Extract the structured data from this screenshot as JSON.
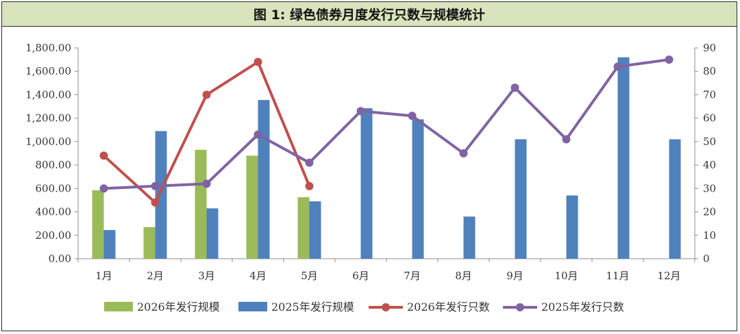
{
  "title": "图 1:  绿色债券月度发行只数与规模统计",
  "chart_data": {
    "type": "bar+line",
    "categories": [
      "1月",
      "2月",
      "3月",
      "4月",
      "5月",
      "6月",
      "7月",
      "8月",
      "9月",
      "10月",
      "11月",
      "12月"
    ],
    "left_axis": {
      "ylim": [
        0,
        1800
      ],
      "ticks": [
        "0.00",
        "200.00",
        "400.00",
        "600.00",
        "800.00",
        "1,000.00",
        "1,200.00",
        "1,400.00",
        "1,600.00",
        "1,800.00"
      ]
    },
    "right_axis": {
      "ylim": [
        0,
        90
      ],
      "ticks": [
        "0",
        "10",
        "20",
        "30",
        "40",
        "50",
        "60",
        "70",
        "80",
        "90"
      ]
    },
    "bar_series": [
      {
        "name": "2026年发行规模",
        "color": "#9bbb59",
        "values": [
          585,
          270,
          930,
          880,
          525,
          null,
          null,
          null,
          null,
          null,
          null,
          null
        ]
      },
      {
        "name": "2025年发行规模",
        "color": "#4f81bd",
        "values": [
          245,
          1090,
          430,
          1355,
          490,
          1285,
          1190,
          360,
          1020,
          540,
          1720,
          1020
        ]
      }
    ],
    "line_series": [
      {
        "name": "2026年发行只数",
        "color": "#c0504d",
        "values": [
          44,
          24,
          70,
          84,
          31,
          null,
          null,
          null,
          null,
          null,
          null,
          null
        ]
      },
      {
        "name": "2025年发行只数",
        "color": "#8064a2",
        "values": [
          30,
          31,
          32,
          53,
          41,
          63,
          61,
          45,
          73,
          51,
          82,
          85
        ]
      }
    ],
    "grid": false,
    "legend_position": "bottom"
  }
}
